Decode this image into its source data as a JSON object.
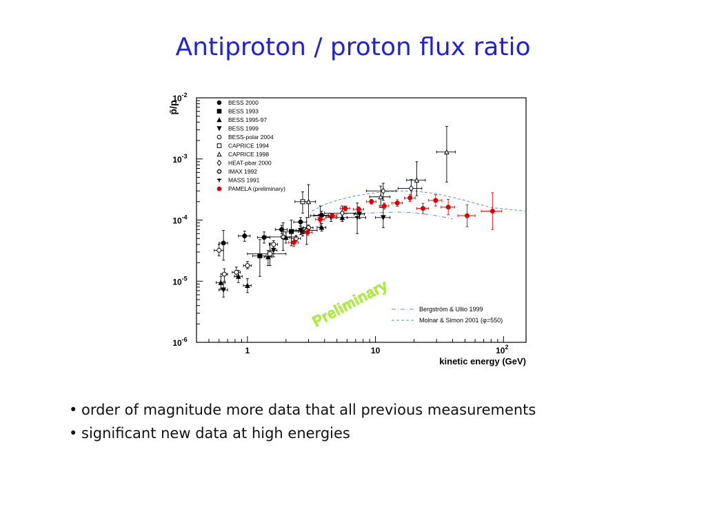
{
  "title": "Antiproton / proton flux ratio",
  "bullets": [
    "order of magnitude more data that all previous measurements",
    "significant new data at high energies"
  ],
  "colors": {
    "title": "#1f1fe0",
    "pamela": "#e00000",
    "watermark": "#aef03c",
    "model": "#5b8ccf"
  },
  "chart_data": {
    "type": "scatter",
    "xscale": "log",
    "yscale": "log",
    "xlim": [
      0.4,
      150
    ],
    "ylim": [
      1e-06,
      0.01
    ],
    "xlabel": "kinetic energy (GeV)",
    "ylabel": "p̄/p",
    "xticks": [
      {
        "value": 1,
        "label": "1"
      },
      {
        "value": 10,
        "label": "10"
      },
      {
        "value": 100,
        "label": "10",
        "exp": "2"
      }
    ],
    "yticks": [
      {
        "value": 1e-06,
        "label": "10",
        "exp": "-6"
      },
      {
        "value": 1e-05,
        "label": "10",
        "exp": "-5"
      },
      {
        "value": 0.0001,
        "label": "10",
        "exp": "-4"
      },
      {
        "value": 0.001,
        "label": "10",
        "exp": "-3"
      },
      {
        "value": 0.01,
        "label": "10",
        "exp": "-2"
      }
    ],
    "legend_position": "top-left",
    "watermark": "Preliminary",
    "series": [
      {
        "name": "BESS 2000",
        "marker": "circle-filled",
        "color": "#000000",
        "points": [
          {
            "x": 0.65,
            "y": 4.2e-05,
            "xerr": 0.05,
            "ylo": 2.2e-05,
            "yhi": 6.8e-05
          },
          {
            "x": 0.95,
            "y": 5.5e-05,
            "xerr": 0.1,
            "ylo": 4.5e-05,
            "yhi": 6.6e-05
          },
          {
            "x": 1.35,
            "y": 5.2e-05,
            "xerr": 0.15,
            "ylo": 4.2e-05,
            "yhi": 6.4e-05
          },
          {
            "x": 1.85,
            "y": 7e-05,
            "xerr": 0.2,
            "ylo": 6e-05,
            "yhi": 8.2e-05
          },
          {
            "x": 2.6,
            "y": 9.3e-05,
            "xerr": 0.3,
            "ylo": 8e-05,
            "yhi": 0.00011
          },
          {
            "x": 3.8,
            "y": 0.00012,
            "xerr": 0.5,
            "ylo": 0.000105,
            "yhi": 0.00014
          }
        ]
      },
      {
        "name": "BESS 1993",
        "marker": "square-filled",
        "color": "#000000",
        "points": [
          {
            "x": 1.25,
            "y": 2.6e-05,
            "xerr": 0.15,
            "ylo": 1.2e-05,
            "yhi": 4.8e-05
          },
          {
            "x": 2.2,
            "y": 6.5e-05,
            "xerr": 0.3,
            "ylo": 3.8e-05,
            "yhi": 0.0001
          }
        ]
      },
      {
        "name": "BESS 1995-97",
        "marker": "triangle-filled",
        "color": "#000000",
        "points": [
          {
            "x": 0.62,
            "y": 9.5e-06,
            "xerr": 0.05,
            "ylo": 7.5e-06,
            "yhi": 1.2e-05
          },
          {
            "x": 0.85,
            "y": 1.2e-05,
            "xerr": 0.06,
            "ylo": 9.5e-06,
            "yhi": 1.5e-05
          },
          {
            "x": 1.0,
            "y": 8.5e-06,
            "xerr": 0.07,
            "ylo": 6.5e-06,
            "yhi": 1.1e-05
          },
          {
            "x": 1.45,
            "y": 2.5e-05,
            "xerr": 0.1,
            "ylo": 1.8e-05,
            "yhi": 3.2e-05
          },
          {
            "x": 2.0,
            "y": 5.2e-05,
            "xerr": 0.15,
            "ylo": 4.2e-05,
            "yhi": 6.2e-05
          },
          {
            "x": 2.7,
            "y": 6.5e-05,
            "xerr": 0.2,
            "ylo": 5.5e-05,
            "yhi": 7.6e-05
          },
          {
            "x": 3.8,
            "y": 7.6e-05,
            "xerr": 0.3,
            "ylo": 6.6e-05,
            "yhi": 8.8e-05
          },
          {
            "x": 5.5,
            "y": 0.00011,
            "xerr": 0.5,
            "ylo": 9.5e-05,
            "yhi": 0.000128
          }
        ]
      },
      {
        "name": "BESS 1999",
        "marker": "triangle-down-filled",
        "color": "#000000",
        "points": [
          {
            "x": 0.65,
            "y": 7.2e-06,
            "xerr": 0.05,
            "ylo": 5.5e-06,
            "yhi": 9.5e-06
          },
          {
            "x": 1.6,
            "y": 3.2e-05,
            "xerr": 0.1,
            "ylo": 2.5e-05,
            "yhi": 4e-05
          },
          {
            "x": 2.6,
            "y": 6.8e-05,
            "xerr": 0.2,
            "ylo": 5.8e-05,
            "yhi": 8e-05
          },
          {
            "x": 4.5,
            "y": 0.00011,
            "xerr": 0.4,
            "ylo": 9.5e-05,
            "yhi": 0.000128
          },
          {
            "x": 7.5,
            "y": 0.000125,
            "xerr": 0.7,
            "ylo": 0.000105,
            "yhi": 0.000148
          },
          {
            "x": 11.5,
            "y": 0.00011,
            "xerr": 1.5,
            "ylo": 7.5e-05,
            "yhi": 0.00016
          }
        ]
      },
      {
        "name": "BESS-polar 2004",
        "marker": "circle-open",
        "color": "#000000",
        "points": [
          {
            "x": 0.6,
            "y": 3.2e-05,
            "xerr": 0.05,
            "ylo": 2.6e-05,
            "yhi": 4e-05
          },
          {
            "x": 0.66,
            "y": 1.3e-05,
            "xerr": 0.04,
            "ylo": 1e-05,
            "yhi": 1.6e-05
          },
          {
            "x": 0.82,
            "y": 1.4e-05,
            "xerr": 0.06,
            "ylo": 1.2e-05,
            "yhi": 1.7e-05
          },
          {
            "x": 1.0,
            "y": 1.8e-05,
            "xerr": 0.07,
            "ylo": 1.6e-05,
            "yhi": 2.1e-05
          },
          {
            "x": 1.6,
            "y": 4e-05,
            "xerr": 0.12,
            "ylo": 3.5e-05,
            "yhi": 4.6e-05
          },
          {
            "x": 2.4,
            "y": 5e-05,
            "xerr": 0.2,
            "ylo": 4.5e-05,
            "yhi": 5.6e-05
          },
          {
            "x": 3.0,
            "y": 7.5e-05,
            "xerr": 0.25,
            "ylo": 6.8e-05,
            "yhi": 8.3e-05
          }
        ]
      },
      {
        "name": "CAPRICE 1994",
        "marker": "square-open",
        "color": "#000000",
        "points": [
          {
            "x": 1.5,
            "y": 2.8e-05,
            "xerr": 0.5,
            "ylo": 1.8e-05,
            "yhi": 4.2e-05
          },
          {
            "x": 2.7,
            "y": 0.0002,
            "xerr": 0.35,
            "ylo": 0.00013,
            "yhi": 0.00029
          }
        ]
      },
      {
        "name": "CAPRICE 1998",
        "marker": "triangle-open",
        "color": "#000000",
        "points": [
          {
            "x": 3.0,
            "y": 0.0002,
            "xerr": 0.4,
            "ylo": 0.00011,
            "yhi": 0.00038
          },
          {
            "x": 11.0,
            "y": 0.00024,
            "xerr": 2.0,
            "ylo": 0.00016,
            "yhi": 0.00036
          },
          {
            "x": 21.0,
            "y": 0.00045,
            "xerr": 3.5,
            "ylo": 0.00025,
            "yhi": 0.0009
          },
          {
            "x": 36.0,
            "y": 0.0013,
            "xerr": 6.0,
            "ylo": 0.00042,
            "yhi": 0.0034
          }
        ]
      },
      {
        "name": "HEAT-pbar 2000",
        "marker": "diamond-open",
        "color": "#000000",
        "points": [
          {
            "x": 5.5,
            "y": 0.00013,
            "xerr": 1.5,
            "ylo": 9.5e-05,
            "yhi": 0.00017
          },
          {
            "x": 11.5,
            "y": 0.0003,
            "xerr": 3.0,
            "ylo": 0.00021,
            "yhi": 0.0004
          },
          {
            "x": 19.0,
            "y": 0.00033,
            "xerr": 4.0,
            "ylo": 0.00023,
            "yhi": 0.00046
          }
        ]
      },
      {
        "name": "IMAX 1992",
        "marker": "cross-open",
        "color": "#000000",
        "points": [
          {
            "x": 1.9,
            "y": 5.3e-05,
            "xerr": 0.5,
            "ylo": 3.2e-05,
            "yhi": 9e-05
          },
          {
            "x": 2.9,
            "y": 6.8e-05,
            "xerr": 0.6,
            "ylo": 4e-05,
            "yhi": 0.00011
          }
        ]
      },
      {
        "name": "MASS 1991",
        "marker": "star-filled",
        "color": "#000000",
        "points": [
          {
            "x": 3.7,
            "y": 0.000118,
            "xerr": 0.6,
            "ylo": 7.5e-05,
            "yhi": 0.00017
          },
          {
            "x": 7.2,
            "y": 0.00011,
            "xerr": 1.2,
            "ylo": 6e-05,
            "yhi": 0.00019
          }
        ]
      },
      {
        "name": "PAMELA (preliminary)",
        "marker": "circle-filled",
        "color": "#e00000",
        "points": [
          {
            "x": 2.3,
            "y": 4.3e-05,
            "xerr": 0.2,
            "ylo": 3.7e-05,
            "yhi": 5e-05
          },
          {
            "x": 2.95,
            "y": 6.3e-05,
            "xerr": 0.25,
            "ylo": 5.6e-05,
            "yhi": 7.1e-05
          },
          {
            "x": 3.7,
            "y": 0.000103,
            "xerr": 0.3,
            "ylo": 9.3e-05,
            "yhi": 0.000113
          },
          {
            "x": 4.6,
            "y": 0.000118,
            "xerr": 0.4,
            "ylo": 0.000108,
            "yhi": 0.000129
          },
          {
            "x": 5.8,
            "y": 0.000155,
            "xerr": 0.5,
            "ylo": 0.000141,
            "yhi": 0.00017
          },
          {
            "x": 7.4,
            "y": 0.00015,
            "xerr": 0.7,
            "ylo": 0.000137,
            "yhi": 0.000165
          },
          {
            "x": 9.3,
            "y": 0.0002,
            "xerr": 0.8,
            "ylo": 0.000183,
            "yhi": 0.000218
          },
          {
            "x": 11.7,
            "y": 0.00017,
            "xerr": 1.0,
            "ylo": 0.000152,
            "yhi": 0.00019
          },
          {
            "x": 14.8,
            "y": 0.00019,
            "xerr": 1.4,
            "ylo": 0.000168,
            "yhi": 0.000215
          },
          {
            "x": 18.6,
            "y": 0.00023,
            "xerr": 1.8,
            "ylo": 0.000202,
            "yhi": 0.00026
          },
          {
            "x": 23.5,
            "y": 0.000155,
            "xerr": 2.5,
            "ylo": 0.000128,
            "yhi": 0.000188
          },
          {
            "x": 29.5,
            "y": 0.00021,
            "xerr": 3.5,
            "ylo": 0.00017,
            "yhi": 0.00026
          },
          {
            "x": 37.0,
            "y": 0.000163,
            "xerr": 4.5,
            "ylo": 0.000122,
            "yhi": 0.000218
          },
          {
            "x": 52.0,
            "y": 0.000118,
            "xerr": 8.0,
            "ylo": 7.8e-05,
            "yhi": 0.000178
          },
          {
            "x": 82.0,
            "y": 0.00014,
            "xerr": 15.0,
            "ylo": 7e-05,
            "yhi": 0.00028
          }
        ]
      }
    ],
    "models": [
      {
        "name": "Bergström & Ullio 1999",
        "style": "dash-dot",
        "color": "#5b8ccf",
        "points": [
          [
            3.5,
            0.00011
          ],
          [
            5,
            0.000123
          ],
          [
            7,
            0.000128
          ],
          [
            10,
            0.000132
          ],
          [
            15,
            0.000135
          ],
          [
            20,
            0.000132
          ],
          [
            30,
            0.000118
          ],
          [
            40,
            0.000105
          ]
        ]
      },
      {
        "name": "Molnar & Simon 2001 (φ=550)",
        "style": "dashed",
        "color": "#5b8ccf",
        "points": [
          [
            3.2,
            0.00014
          ],
          [
            4,
            0.00018
          ],
          [
            5,
            0.00021
          ],
          [
            7,
            0.00025
          ],
          [
            10,
            0.00028
          ],
          [
            15,
            0.0003
          ],
          [
            20,
            0.0003
          ],
          [
            30,
            0.00027
          ],
          [
            50,
            0.00021
          ],
          [
            80,
            0.00016
          ],
          [
            150,
            0.00014
          ]
        ]
      }
    ]
  }
}
